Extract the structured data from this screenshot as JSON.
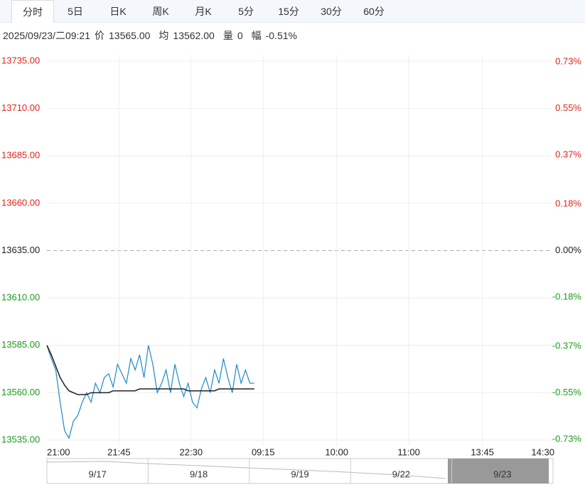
{
  "tabs": [
    "分时",
    "5日",
    "日K",
    "周K",
    "月K",
    "5分",
    "15分",
    "30分",
    "60分"
  ],
  "info": {
    "time": "2025/09/23/二09:21",
    "items": [
      {
        "label": "价",
        "value": "13565.00"
      },
      {
        "label": "均",
        "value": "13562.00"
      },
      {
        "label": "量",
        "value": "0"
      },
      {
        "label": "幅",
        "value": "-0.51%"
      }
    ]
  },
  "chart_data": {
    "type": "line",
    "baseline": 13635,
    "x": [
      0,
      3,
      6,
      9,
      12,
      15,
      18,
      21,
      24,
      27,
      30,
      33,
      36,
      39,
      42,
      45,
      48,
      51,
      54,
      57,
      60,
      63,
      66,
      69,
      72,
      75,
      78,
      81,
      84,
      87,
      90,
      93,
      96,
      99,
      102,
      105,
      108,
      111,
      114,
      117,
      120,
      123,
      126,
      129,
      132,
      135,
      138,
      141
    ],
    "series": [
      {
        "name": "价",
        "color": "#1e88c8",
        "values": [
          13585,
          13578,
          13572,
          13555,
          13540,
          13536,
          13545,
          13548,
          13555,
          13560,
          13555,
          13565,
          13560,
          13568,
          13570,
          13563,
          13575,
          13570,
          13565,
          13578,
          13572,
          13580,
          13568,
          13585,
          13575,
          13560,
          13565,
          13572,
          13560,
          13575,
          13565,
          13558,
          13565,
          13555,
          13552,
          13562,
          13568,
          13560,
          13572,
          13565,
          13578,
          13568,
          13560,
          13575,
          13565,
          13572,
          13565,
          13565
        ]
      },
      {
        "name": "均",
        "color": "#222222",
        "values": [
          13585,
          13580,
          13574,
          13568,
          13564,
          13561,
          13560,
          13559,
          13559,
          13559,
          13560,
          13560,
          13560,
          13560,
          13560,
          13561,
          13561,
          13561,
          13561,
          13561,
          13561,
          13562,
          13562,
          13562,
          13562,
          13562,
          13562,
          13562,
          13562,
          13562,
          13562,
          13562,
          13561,
          13561,
          13561,
          13561,
          13561,
          13561,
          13561,
          13562,
          13562,
          13562,
          13562,
          13562,
          13562,
          13562,
          13562,
          13562
        ]
      }
    ],
    "xlim": [
      0,
      345
    ],
    "xticks": [
      {
        "value": 0,
        "label": "21:00"
      },
      {
        "value": 49,
        "label": "21:45"
      },
      {
        "value": 98,
        "label": "22:30"
      },
      {
        "value": 147,
        "label": "09:15"
      },
      {
        "value": 197,
        "label": "10:00"
      },
      {
        "value": 246,
        "label": "11:00"
      },
      {
        "value": 296,
        "label": "13:45"
      },
      {
        "value": 345,
        "label": "14:30"
      }
    ],
    "ylim": [
      13535,
      13735
    ],
    "yticks": [
      {
        "value": 13735,
        "label": "13735.00"
      },
      {
        "value": 13710,
        "label": "13710.00"
      },
      {
        "value": 13685,
        "label": "13685.00"
      },
      {
        "value": 13660,
        "label": "13660.00"
      },
      {
        "value": 13635,
        "label": "13635.00"
      },
      {
        "value": 13610,
        "label": "13610.00"
      },
      {
        "value": 13585,
        "label": "13585.00"
      },
      {
        "value": 13560,
        "label": "13560.00"
      },
      {
        "value": 13535,
        "label": "13535.00"
      }
    ],
    "y2lim": [
      -0.733,
      0.733
    ],
    "y2ticks": [
      {
        "value": 0.73,
        "label": "0.73%"
      },
      {
        "value": 0.55,
        "label": "0.55%"
      },
      {
        "value": 0.37,
        "label": "0.37%"
      },
      {
        "value": 0.18,
        "label": "0.18%"
      },
      {
        "value": 0,
        "label": "0.00%"
      },
      {
        "value": -0.18,
        "label": "-0.18%"
      },
      {
        "value": -0.37,
        "label": "-0.37%"
      },
      {
        "value": -0.55,
        "label": "-0.55%"
      },
      {
        "value": -0.73,
        "label": "-0.73%"
      }
    ],
    "grid": true,
    "navigator_dates": [
      "9/17",
      "9/18",
      "9/19",
      "9/22",
      "9/23"
    ]
  }
}
